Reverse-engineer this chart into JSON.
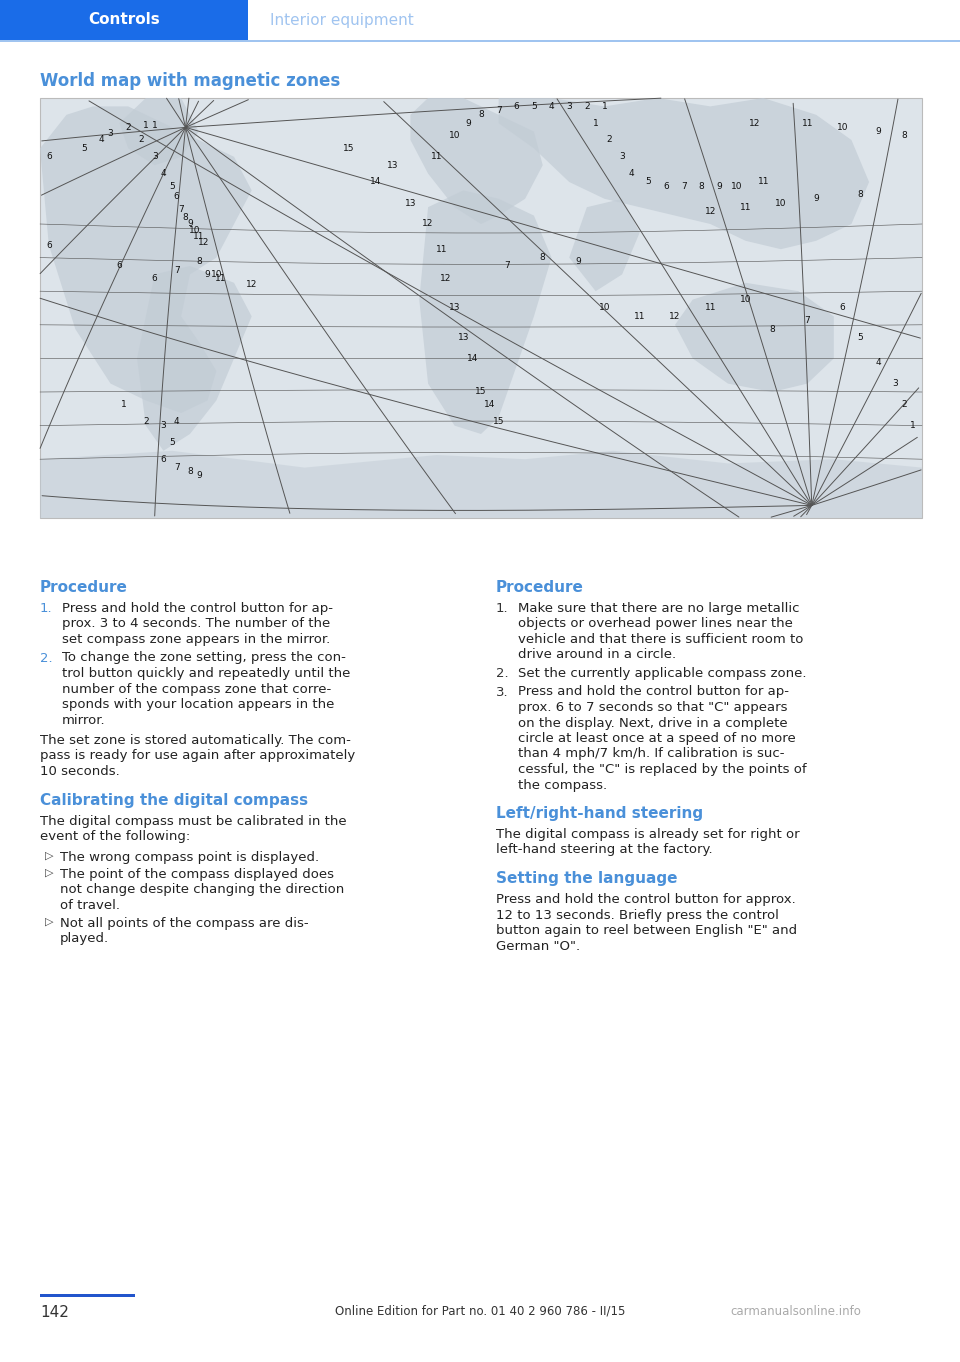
{
  "page_bg": "#ffffff",
  "header_bg": "#1a6ce8",
  "header_text_left": "Controls",
  "header_text_right": "Interior equipment",
  "header_text_color": "#ffffff",
  "header_subtext_color": "#a0c4f0",
  "header_line_color": "#a0c4f0",
  "section_title": "World map with magnetic zones",
  "section_title_color": "#4a90d9",
  "footer_line_color": "#2255cc",
  "footer_page_num": "142",
  "footer_text": "Online Edition for Part no. 01 40 2 960 786 - II/15",
  "footer_watermark": "carmanualsonline.info",
  "col1_title": "Procedure",
  "col1_title_color": "#4a90d9",
  "col1_num_color": "#4a90d9",
  "col1_items": [
    "Press and hold the control button for ap-\nprox. 3 to 4 seconds. The number of the\nset compass zone appears in the mirror.",
    "To change the zone setting, press the con-\ntrol button quickly and repeatedly until the\nnumber of the compass zone that corre-\nsponds with your location appears in the\nmirror."
  ],
  "col1_extra": "The set zone is stored automatically. The com-\npass is ready for use again after approximately\n10 seconds.",
  "col1_sub_title": "Calibrating the digital compass",
  "col1_sub_title_color": "#4a90d9",
  "col1_sub_text": "The digital compass must be calibrated in the\nevent of the following:",
  "col1_bullets": [
    "The wrong compass point is displayed.",
    "The point of the compass displayed does\nnot change despite changing the direction\nof travel.",
    "Not all points of the compass are dis-\nplayed."
  ],
  "col2_title": "Procedure",
  "col2_title_color": "#4a90d9",
  "col2_num_color": "#333333",
  "col2_items": [
    "Make sure that there are no large metallic\nobjects or overhead power lines near the\nvehicle and that there is sufficient room to\ndrive around in a circle.",
    "Set the currently applicable compass zone.",
    "Press and hold the control button for ap-\nprox. 6 to 7 seconds so that \"C\" appears\non the display. Next, drive in a complete\ncircle at least once at a speed of no more\nthan 4 mph/7 km/h. If calibration is suc-\ncessful, the \"C\" is replaced by the points of\nthe compass."
  ],
  "col2_sub_title1": "Left/right-hand steering",
  "col2_sub_title1_color": "#4a90d9",
  "col2_sub_text1": "The digital compass is already set for right or\nleft-hand steering at the factory.",
  "col2_sub_title2": "Setting the language",
  "col2_sub_title2_color": "#4a90d9",
  "col2_sub_text2": "Press and hold the control button for approx.\n12 to 13 seconds. Briefly press the control\nbutton again to reel between English \"E\" and\nGerman \"O\".",
  "map_bg": "#dde4ea",
  "map_border": "#bbbbbb",
  "map_line_color": "#555555",
  "continent_color": "#c2ccd5"
}
